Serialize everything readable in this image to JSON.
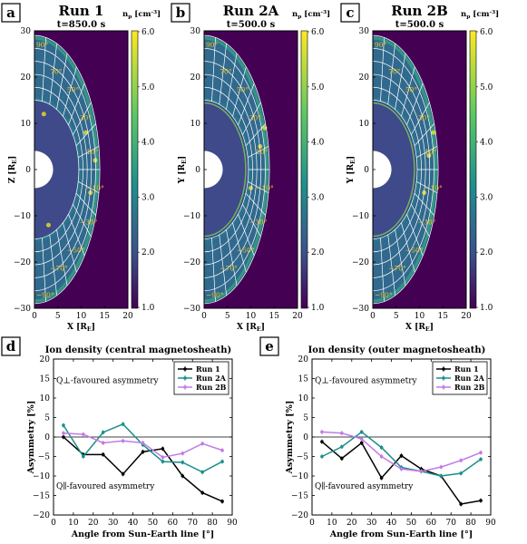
{
  "colors": {
    "bg_dark": "#440154",
    "mid": "#21908d",
    "bright": "#fde725",
    "grid": "#ffffff",
    "angle_label": "#f5c518",
    "run1": "#000000",
    "run2a": "#1a8f8a",
    "run2b": "#c27be6"
  },
  "colorbar": {
    "label": "n_p [cm^-3]",
    "ticks": [
      "6.0",
      "5.0",
      "4.0",
      "3.0",
      "2.0",
      "1.0"
    ],
    "range": [
      1.0,
      6.0
    ]
  },
  "maps": [
    {
      "letter": "a",
      "title": "Run 1",
      "subtitle": "t=850.0 s",
      "xlabel": "X [R_E]",
      "ylabel": "Z [R_E]",
      "xticks": [
        "0",
        "5",
        "10",
        "15",
        "20"
      ],
      "yticks": [
        "30",
        "20",
        "10",
        "0",
        "−10",
        "−20",
        "−30"
      ],
      "angle_labels": [
        "90°",
        "70°",
        "50°",
        "30°",
        "10°",
        "−10°",
        "−30°",
        "−50°",
        "−70°",
        "−90°"
      ]
    },
    {
      "letter": "b",
      "title": "Run 2A",
      "subtitle": "t=500.0 s",
      "xlabel": "X [R_E]",
      "ylabel": "Y [R_E]",
      "xticks": [
        "0",
        "5",
        "10",
        "15",
        "20"
      ],
      "yticks": [
        "30",
        "20",
        "10",
        "0",
        "−10",
        "−20",
        "−30"
      ],
      "angle_labels": [
        "90°",
        "70°",
        "50°",
        "30°",
        "10°",
        "−10°",
        "−30°",
        "−50°",
        "−70°",
        "−90°"
      ]
    },
    {
      "letter": "c",
      "title": "Run 2B",
      "subtitle": "t=500.0 s",
      "xlabel": "X [R_E]",
      "ylabel": "Y [R_E]",
      "xticks": [
        "0",
        "5",
        "10",
        "15",
        "20"
      ],
      "yticks": [
        "30",
        "20",
        "10",
        "0",
        "−10",
        "−20",
        "−30"
      ],
      "angle_labels": [
        "90°",
        "70°",
        "50°",
        "30°",
        "10°",
        "−10°",
        "−30°",
        "−50°",
        "−70°",
        "−90°"
      ]
    }
  ],
  "chart_data": [
    {
      "type": "line",
      "letter": "d",
      "title": "Ion density (central magnetosheath)",
      "xlabel": "Angle from Sun-Earth line [°]",
      "ylabel": "Asymmetry [%]",
      "xlim": [
        0,
        90
      ],
      "ylim": [
        -20,
        20
      ],
      "xticks": [
        0,
        10,
        20,
        30,
        40,
        50,
        60,
        70,
        80,
        90
      ],
      "yticks": [
        20,
        15,
        10,
        5,
        0,
        -5,
        -10,
        -15,
        -20
      ],
      "annotation_top": "Q⊥-favoured asymmetry",
      "annotation_bottom": "Q∥-favoured asymmetry",
      "legend_position": "top-right",
      "x": [
        5,
        15,
        25,
        35,
        45,
        55,
        65,
        75,
        85
      ],
      "series": [
        {
          "name": "Run 1",
          "color": "#000000",
          "values": [
            0.0,
            -4.5,
            -4.5,
            -9.5,
            -3.8,
            -3.0,
            -10.0,
            -14.3,
            -16.5
          ]
        },
        {
          "name": "Run 2A",
          "color": "#1a8f8a",
          "values": [
            3.0,
            -5.0,
            1.2,
            3.3,
            -2.0,
            -6.3,
            -6.5,
            -9.0,
            -6.3
          ]
        },
        {
          "name": "Run 2B",
          "color": "#c27be6",
          "values": [
            1.0,
            0.7,
            -1.5,
            -1.0,
            -1.5,
            -5.2,
            -4.2,
            -1.7,
            -3.4
          ]
        }
      ]
    },
    {
      "type": "line",
      "letter": "e",
      "title": "Ion density (outer magnetosheath)",
      "xlabel": "Angle from Sun-Earth line [°]",
      "ylabel": "Asymmetry [%]",
      "xlim": [
        0,
        90
      ],
      "ylim": [
        -20,
        20
      ],
      "xticks": [
        0,
        10,
        20,
        30,
        40,
        50,
        60,
        70,
        80,
        90
      ],
      "yticks": [
        20,
        15,
        10,
        5,
        0,
        -5,
        -10,
        -15,
        -20
      ],
      "annotation_top": "Q⊥-favoured asymmetry",
      "annotation_bottom": "Q∥-favoured asymmetry",
      "legend_position": "top-right",
      "x": [
        5,
        15,
        25,
        35,
        45,
        55,
        65,
        75,
        85
      ],
      "series": [
        {
          "name": "Run 1",
          "color": "#000000",
          "values": [
            -1.2,
            -5.5,
            -1.5,
            -10.5,
            -4.8,
            -8.2,
            -10.0,
            -17.2,
            -16.3
          ]
        },
        {
          "name": "Run 2A",
          "color": "#1a8f8a",
          "values": [
            -5.0,
            -2.5,
            1.3,
            -2.7,
            -7.8,
            -8.8,
            -10.0,
            -9.3,
            -5.7
          ]
        },
        {
          "name": "Run 2B",
          "color": "#c27be6",
          "values": [
            1.3,
            1.0,
            -0.5,
            -5.0,
            -8.2,
            -8.8,
            -7.7,
            -6.0,
            -4.0
          ]
        }
      ]
    }
  ]
}
